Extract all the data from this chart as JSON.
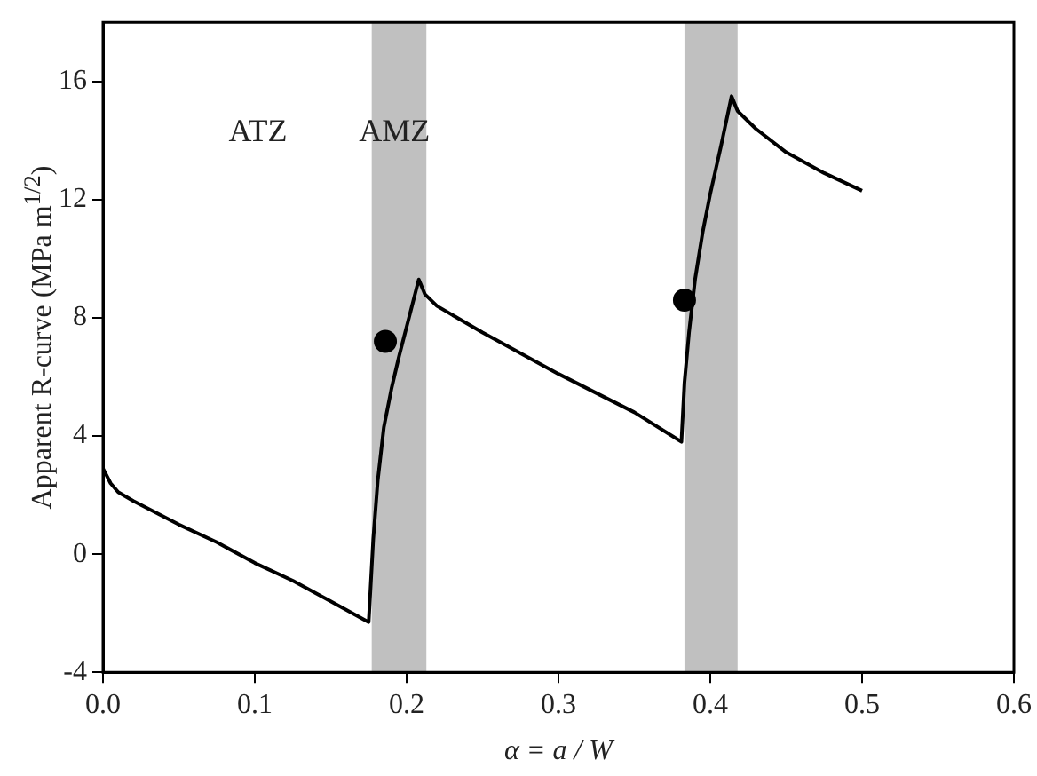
{
  "chart_data": {
    "type": "line",
    "xlabel": "α = a / W",
    "ylabel": "Apparent R-curve (MPa m$^{1/2}$)",
    "xlim": [
      0,
      0.6
    ],
    "xticks": [
      {
        "value": 0,
        "label": "0.0"
      },
      {
        "value": 0.1,
        "label": "0.1"
      },
      {
        "value": 0.2,
        "label": "0.2"
      },
      {
        "value": 0.3,
        "label": "0.3"
      },
      {
        "value": 0.4,
        "label": "0.4"
      },
      {
        "value": 0.5,
        "label": "0.5"
      },
      {
        "value": 0.6,
        "label": "0.6"
      }
    ],
    "ylim": [
      -4,
      18
    ],
    "yticks": [
      -4,
      0,
      4,
      8,
      12,
      16
    ],
    "grid": false,
    "legend": false,
    "annotations": [
      "ATZ",
      "AMZ"
    ],
    "bands": [
      {
        "axis": "x",
        "from": 0.177,
        "to": 0.213,
        "color": "#c0c0c0"
      },
      {
        "axis": "x",
        "from": 0.383,
        "to": 0.418,
        "color": "#c0c0c0"
      }
    ],
    "series": [
      {
        "type": "line",
        "color": "#000000",
        "marker": "none",
        "x": [
          0,
          0.005,
          0.01,
          0.02,
          0.035,
          0.05,
          0.075,
          0.1,
          0.125,
          0.15,
          0.175,
          0.178,
          0.181,
          0.185,
          0.19,
          0.195,
          0.2,
          0.208,
          0.212,
          0.22,
          0.25,
          0.3,
          0.35,
          0.381,
          0.383,
          0.386,
          0.39,
          0.395,
          0.4,
          0.407,
          0.414,
          0.418,
          0.43,
          0.45,
          0.475,
          0.5
        ],
        "values": [
          2.9,
          2.4,
          2.1,
          1.8,
          1.4,
          1.0,
          0.4,
          -0.3,
          -0.9,
          -1.6,
          -2.3,
          0.5,
          2.5,
          4.3,
          5.6,
          6.7,
          7.7,
          9.3,
          8.8,
          8.4,
          7.5,
          6.1,
          4.8,
          3.8,
          5.8,
          7.5,
          9.3,
          10.9,
          12.2,
          13.8,
          15.5,
          15.0,
          14.4,
          13.6,
          12.9,
          12.3
        ]
      },
      {
        "type": "scatter",
        "color": "#000000",
        "marker": "circle",
        "x": [
          0.186,
          0.383
        ],
        "values": [
          7.2,
          8.6
        ]
      }
    ]
  }
}
